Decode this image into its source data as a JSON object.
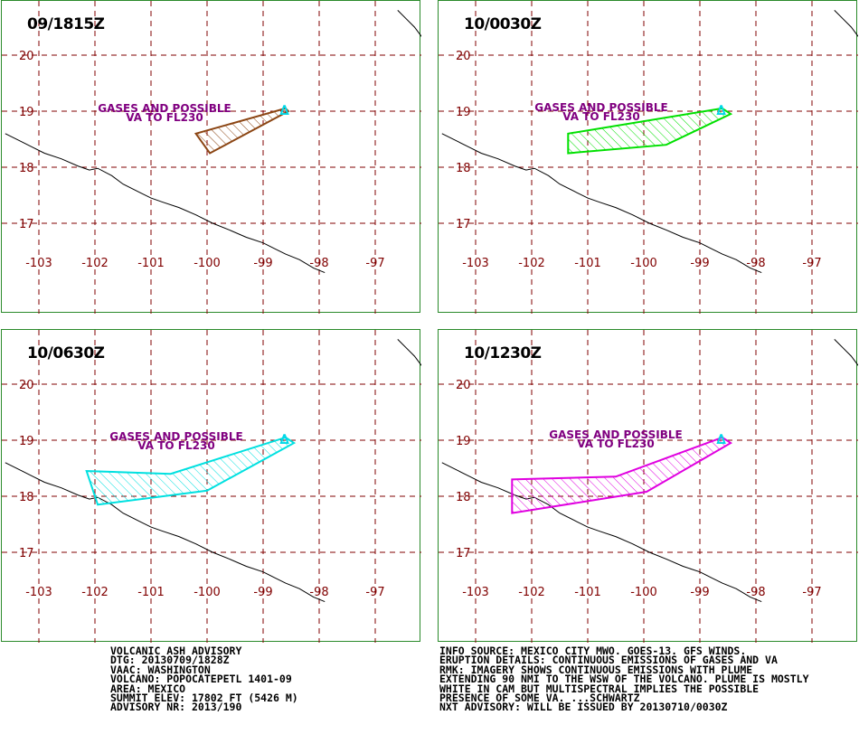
{
  "panels": [
    {
      "title": "09/1815Z",
      "color": "#8b4513",
      "label": [
        "GASES AND POSSIBLE",
        "VA TO FL230"
      ],
      "polygon": [
        [
          -98.6,
          19.05
        ],
        [
          -100.2,
          18.6
        ],
        [
          -99.95,
          18.25
        ],
        [
          -98.55,
          19.0
        ]
      ]
    },
    {
      "title": "10/0030Z",
      "color": "#00e000",
      "label": [
        "GASES AND POSSIBLE",
        "VA TO FL230"
      ],
      "polygon": [
        [
          -98.6,
          19.05
        ],
        [
          -101.35,
          18.6
        ],
        [
          -101.35,
          18.25
        ],
        [
          -99.6,
          18.4
        ],
        [
          -98.45,
          18.95
        ]
      ]
    },
    {
      "title": "10/0630Z",
      "color": "#00e0e0",
      "label": [
        "GASES AND POSSIBLE",
        "VA TO FL230"
      ],
      "polygon": [
        [
          -98.6,
          19.05
        ],
        [
          -100.65,
          18.4
        ],
        [
          -102.15,
          18.45
        ],
        [
          -101.95,
          17.85
        ],
        [
          -100.0,
          18.1
        ],
        [
          -98.45,
          18.95
        ]
      ]
    },
    {
      "title": "10/1230Z",
      "color": "#e000e0",
      "label": [
        "GASES AND POSSIBLE",
        "VA TO FL230"
      ],
      "polygon": [
        [
          -98.6,
          19.05
        ],
        [
          -100.5,
          18.35
        ],
        [
          -102.35,
          18.3
        ],
        [
          -102.35,
          17.7
        ],
        [
          -99.95,
          18.08
        ],
        [
          -98.45,
          18.95
        ]
      ]
    }
  ],
  "grid": {
    "lon_ticks": [
      -103,
      -102,
      -101,
      -100,
      -99,
      -98,
      -97
    ],
    "lat_ticks": [
      20,
      19,
      18,
      17
    ],
    "volcano": {
      "lon": -98.62,
      "lat": 19.02,
      "symbol": "∆"
    }
  },
  "advisory_left": [
    "VOLCANIC ASH ADVISORY",
    "DTG: 20130709/1828Z",
    "VAAC: WASHINGTON",
    "VOLCANO: POPOCATEPETL 1401-09",
    "AREA: MEXICO",
    "SUMMIT ELEV: 17802 FT (5426 M)",
    "ADVISORY NR: 2013/190"
  ],
  "advisory_right": [
    "INFO SOURCE: MEXICO CITY MWO. GOES-13. GFS WINDS.",
    "ERUPTION DETAILS: CONTINUOUS EMISSIONS OF GASES AND VA",
    "RMK: IMAGERY SHOWS CONTINUOUS EMISSIONS WITH PLUME",
    "EXTENDING 90 NMI TO THE WSW OF THE VOLCANO. PLUME IS MOSTLY",
    "WHITE IN CAM BUT MULTISPECTRAL IMPLIES THE POSSIBLE",
    "PRESENCE OF SOME VA. ...SCHWARTZ",
    "NXT ADVISORY: WILL BE ISSUED BY 20130710/0030Z"
  ]
}
